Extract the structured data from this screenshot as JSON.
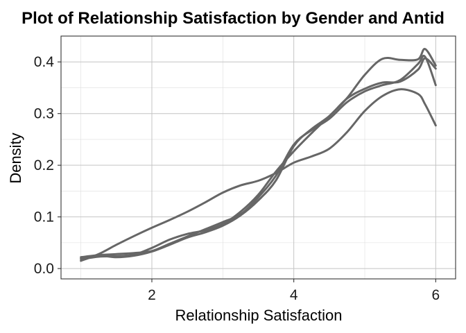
{
  "chart_data": {
    "type": "line",
    "title": "Plot of Relationship Satisfaction by Gender and Antid",
    "xlabel": "Relationship Satisfaction",
    "ylabel": "Density",
    "xlim": [
      0.72,
      6.28
    ],
    "ylim": [
      -0.02,
      0.45
    ],
    "x_ticks": [
      2,
      4,
      6
    ],
    "x_tick_labels": [
      "2",
      "4",
      "6"
    ],
    "y_ticks": [
      0.0,
      0.1,
      0.2,
      0.3,
      0.4
    ],
    "y_tick_labels": [
      "0.0",
      "0.1",
      "0.2",
      "0.3",
      "0.4"
    ],
    "grid": true,
    "legend": "none",
    "line_color": "#666666",
    "x": [
      1.0,
      1.25,
      1.5,
      1.75,
      2.0,
      2.25,
      2.5,
      2.75,
      3.0,
      3.25,
      3.5,
      3.75,
      4.0,
      4.25,
      4.5,
      4.75,
      5.0,
      5.25,
      5.5,
      5.75,
      5.85,
      6.0
    ],
    "series": [
      {
        "values": [
          0.015,
          0.028,
          0.046,
          0.063,
          0.079,
          0.094,
          0.11,
          0.128,
          0.147,
          0.161,
          0.17,
          0.185,
          0.205,
          0.217,
          0.232,
          0.264,
          0.305,
          0.334,
          0.347,
          0.338,
          0.318,
          0.277
        ]
      },
      {
        "values": [
          0.02,
          0.025,
          0.022,
          0.025,
          0.033,
          0.046,
          0.06,
          0.07,
          0.083,
          0.103,
          0.132,
          0.171,
          0.237,
          0.27,
          0.295,
          0.329,
          0.348,
          0.36,
          0.362,
          0.385,
          0.407,
          0.387
        ]
      },
      {
        "values": [
          0.022,
          0.026,
          0.028,
          0.03,
          0.034,
          0.048,
          0.062,
          0.076,
          0.09,
          0.105,
          0.138,
          0.18,
          0.24,
          0.268,
          0.29,
          0.322,
          0.343,
          0.355,
          0.365,
          0.396,
          0.41,
          0.355
        ]
      },
      {
        "values": [
          0.018,
          0.023,
          0.024,
          0.027,
          0.04,
          0.056,
          0.067,
          0.074,
          0.086,
          0.11,
          0.143,
          0.188,
          0.227,
          0.262,
          0.295,
          0.33,
          0.375,
          0.406,
          0.404,
          0.405,
          0.425,
          0.393
        ]
      }
    ]
  }
}
